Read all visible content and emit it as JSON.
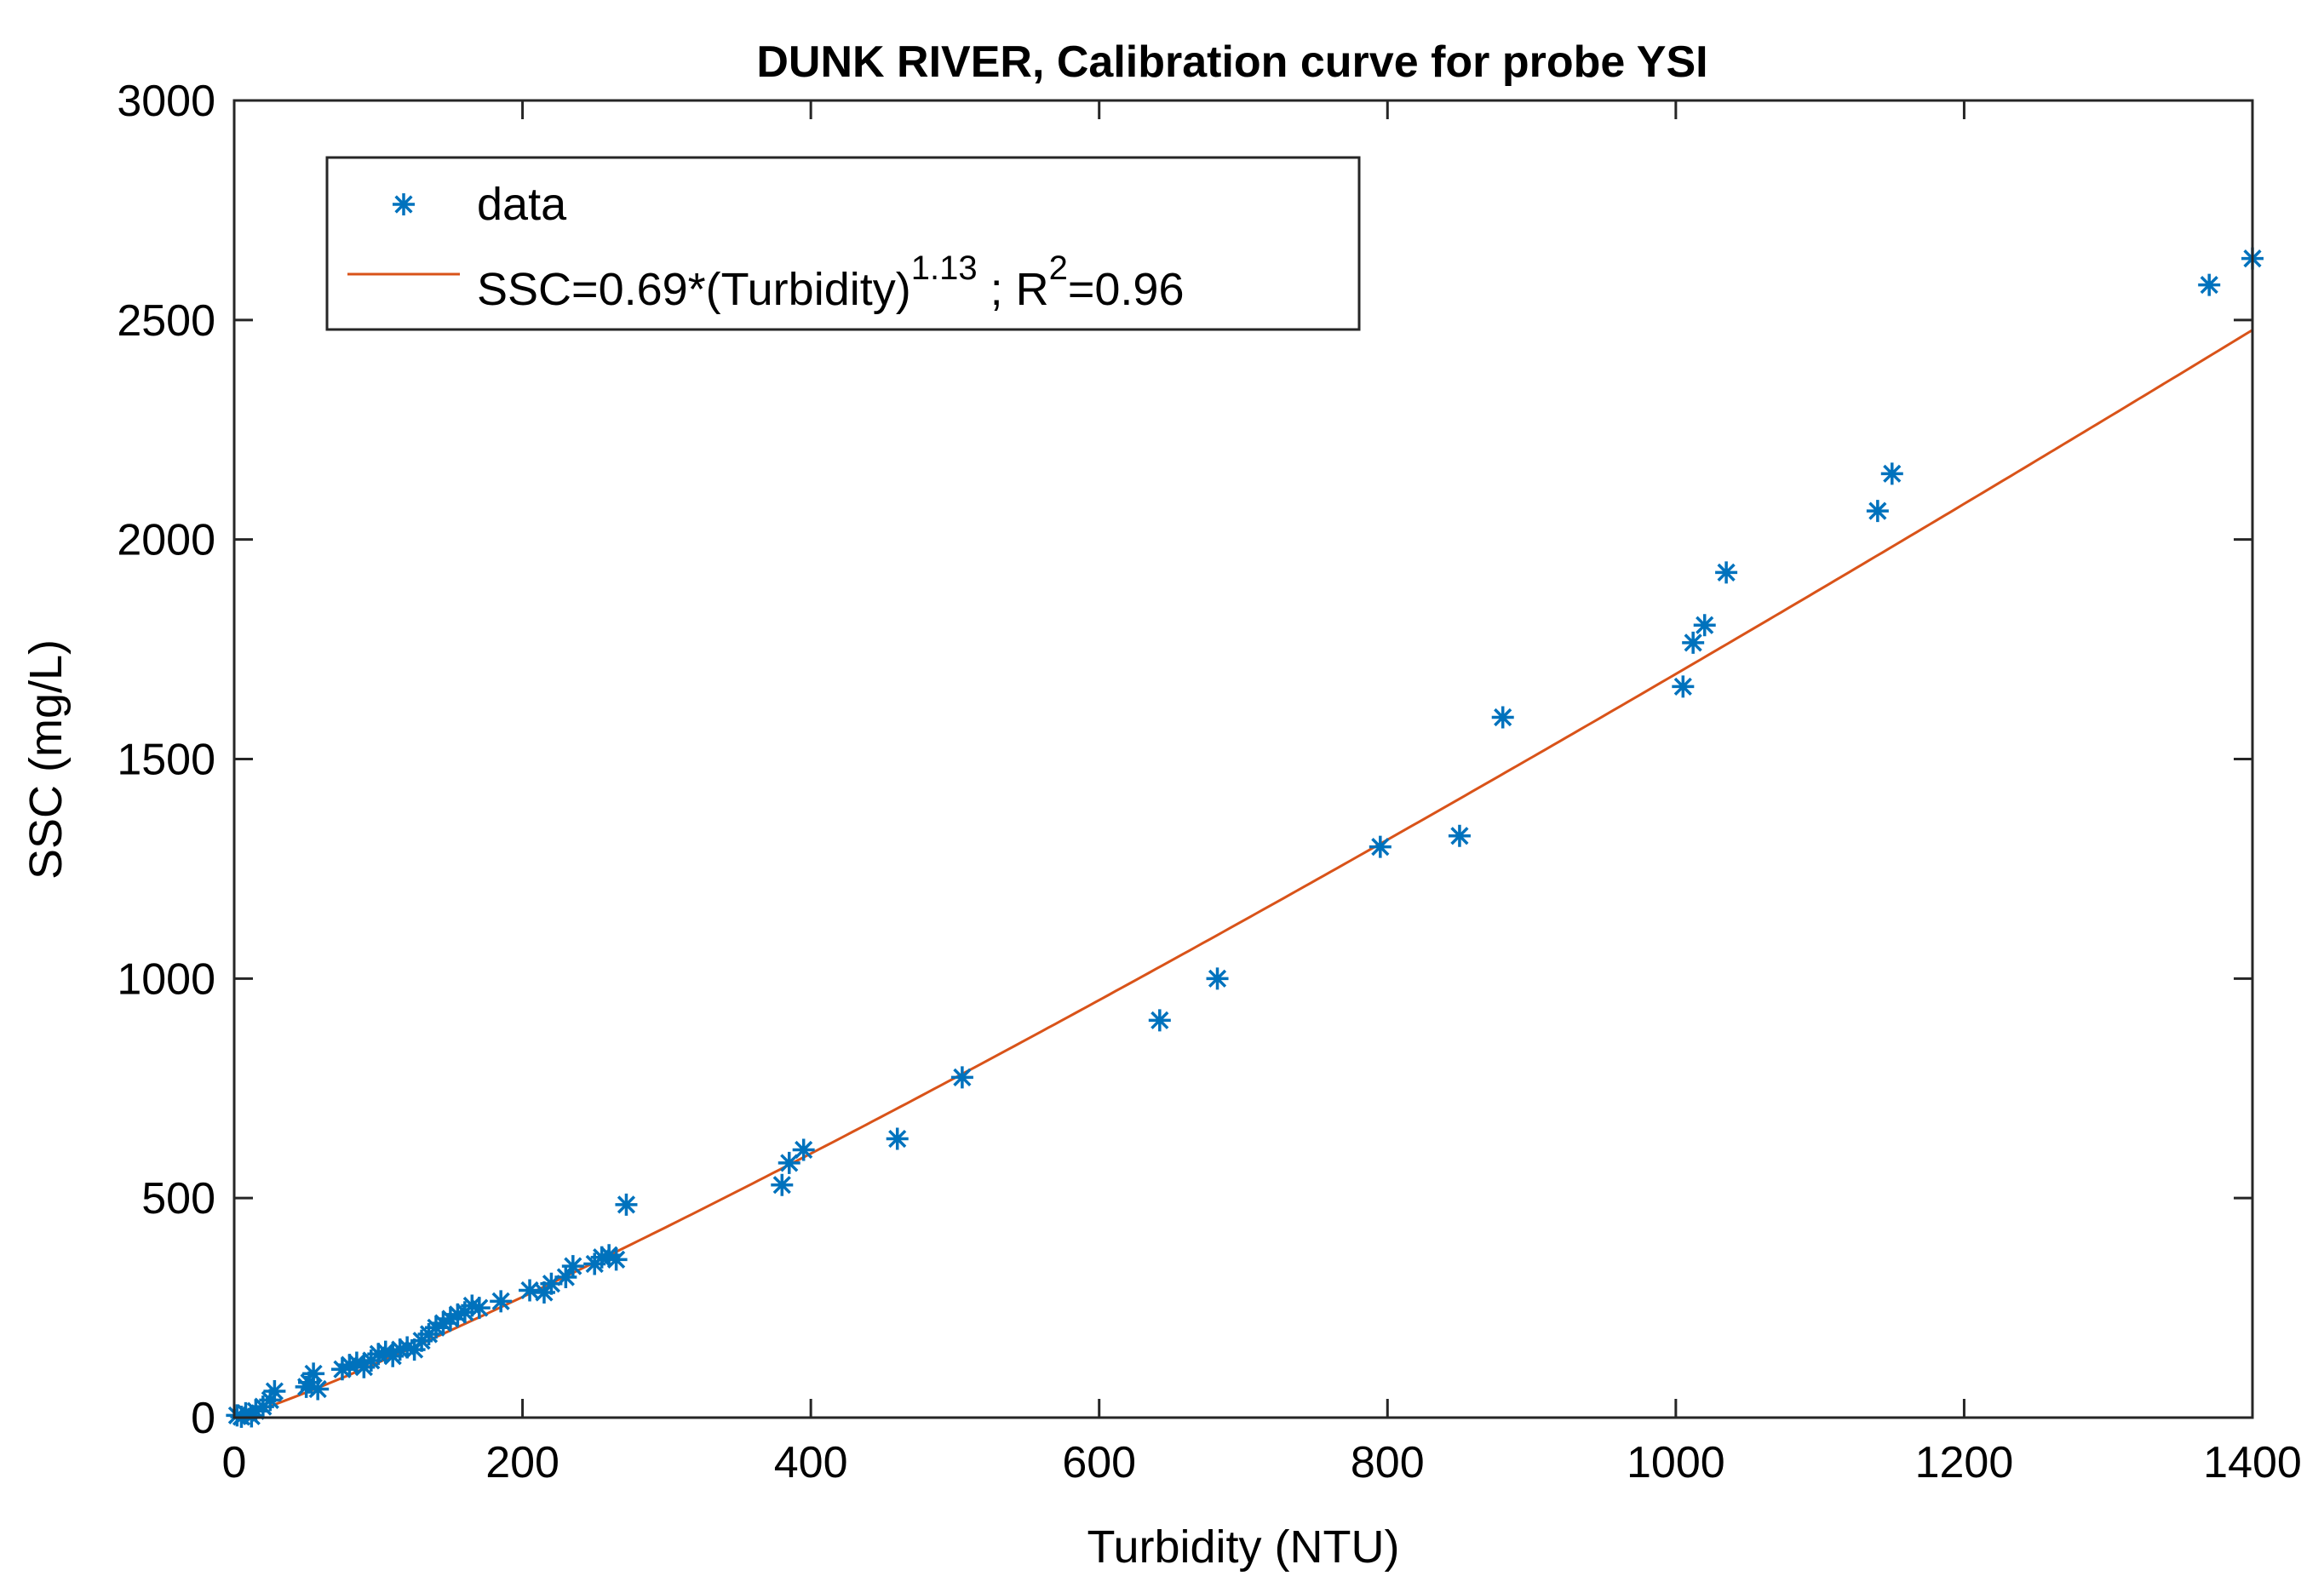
{
  "chart_data": {
    "type": "scatter",
    "title": "DUNK RIVER, Calibration curve for probe YSI",
    "xlabel": "Turbidity (NTU)",
    "ylabel": "SSC (mg/L)",
    "xlim": [
      0,
      1400
    ],
    "ylim": [
      0,
      3000
    ],
    "x_ticks": [
      "0",
      "200",
      "400",
      "600",
      "800",
      "1000",
      "1200",
      "1400"
    ],
    "y_ticks": [
      "0",
      "500",
      "1000",
      "1500",
      "2000",
      "2500",
      "3000"
    ],
    "grid": false,
    "legend_position": "top-left",
    "legend": {
      "data_label": "data",
      "fit_label_prefix": "SSC=0.69*(Turbidity)",
      "fit_label_exponent": "1.13",
      "fit_label_mid": " ; R",
      "fit_label_r2_exponent": "2",
      "fit_label_suffix": "=0.96"
    },
    "colors": {
      "data": "#0072BD",
      "fit": "#D95319"
    },
    "series": [
      {
        "name": "data",
        "kind": "scatter",
        "points": [
          [
            2,
            5
          ],
          [
            5,
            2
          ],
          [
            8,
            10
          ],
          [
            12,
            3
          ],
          [
            15,
            15
          ],
          [
            20,
            25
          ],
          [
            25,
            40
          ],
          [
            28,
            60
          ],
          [
            50,
            70
          ],
          [
            52,
            80
          ],
          [
            55,
            100
          ],
          [
            58,
            65
          ],
          [
            75,
            110
          ],
          [
            80,
            120
          ],
          [
            85,
            125
          ],
          [
            90,
            115
          ],
          [
            95,
            130
          ],
          [
            100,
            145
          ],
          [
            105,
            150
          ],
          [
            110,
            140
          ],
          [
            115,
            155
          ],
          [
            120,
            160
          ],
          [
            125,
            155
          ],
          [
            130,
            175
          ],
          [
            135,
            190
          ],
          [
            140,
            205
          ],
          [
            145,
            215
          ],
          [
            150,
            225
          ],
          [
            155,
            235
          ],
          [
            160,
            240
          ],
          [
            165,
            255
          ],
          [
            170,
            250
          ],
          [
            185,
            265
          ],
          [
            205,
            290
          ],
          [
            215,
            285
          ],
          [
            220,
            305
          ],
          [
            230,
            320
          ],
          [
            235,
            345
          ],
          [
            250,
            350
          ],
          [
            255,
            365
          ],
          [
            260,
            370
          ],
          [
            265,
            360
          ],
          [
            272,
            485
          ],
          [
            380,
            530
          ],
          [
            385,
            580
          ],
          [
            395,
            610
          ],
          [
            460,
            635
          ],
          [
            505,
            775
          ],
          [
            642,
            905
          ],
          [
            682,
            1000
          ],
          [
            795,
            1300
          ],
          [
            850,
            1325
          ],
          [
            880,
            1595
          ],
          [
            1005,
            1665
          ],
          [
            1012,
            1765
          ],
          [
            1020,
            1805
          ],
          [
            1035,
            1925
          ],
          [
            1140,
            2065
          ],
          [
            1150,
            2150
          ],
          [
            1370,
            2580
          ],
          [
            1400,
            2640
          ]
        ]
      },
      {
        "name": "SSC=0.69*(Turbidity)^1.13 ; R^2=0.96",
        "kind": "fit",
        "equation": {
          "a": 0.69,
          "b": 1.13
        }
      }
    ]
  }
}
